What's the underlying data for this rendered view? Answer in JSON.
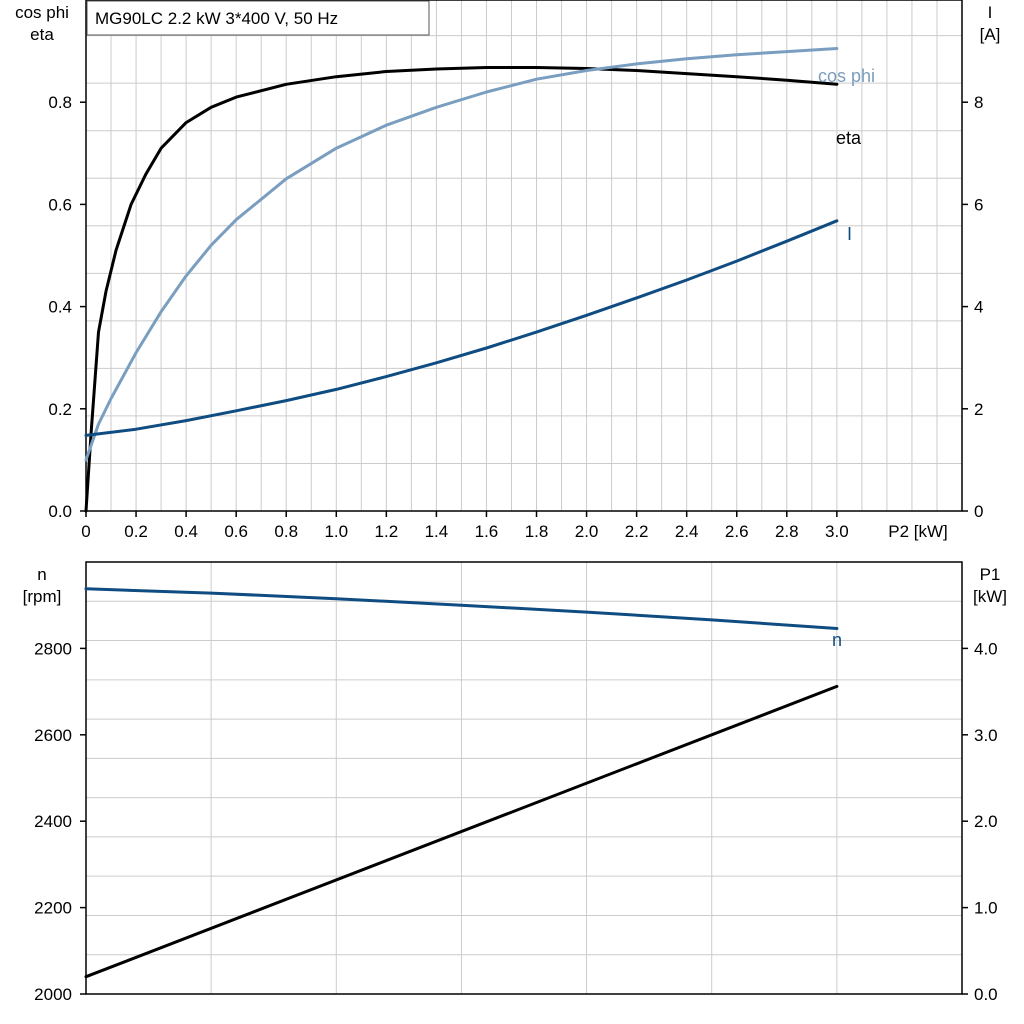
{
  "chart_data": [
    {
      "type": "line",
      "title": "MG90LC   2.2 kW   3*400 V, 50 Hz",
      "xlabel": "P2 [kW]",
      "xlim": [
        0,
        3.5
      ],
      "x_ticks": [
        "0",
        "0.2",
        "0.4",
        "0.6",
        "0.8",
        "1.0",
        "1.2",
        "1.4",
        "1.6",
        "1.8",
        "2.0",
        "2.2",
        "2.4",
        "2.6",
        "2.8",
        "3.0"
      ],
      "y_left_label": [
        "cos phi",
        "eta"
      ],
      "y_left_lim": [
        0,
        1.0
      ],
      "y_left_ticks": [
        "0.0",
        "0.2",
        "0.4",
        "0.6",
        "0.8"
      ],
      "y_right_label": [
        "I",
        "[A]"
      ],
      "y_right_lim": [
        0,
        10
      ],
      "y_right_ticks": [
        "0",
        "2",
        "4",
        "6",
        "8"
      ],
      "grid": true,
      "series": [
        {
          "name": "eta",
          "axis": "left",
          "color": "#000000",
          "x": [
            0,
            0.02,
            0.05,
            0.08,
            0.12,
            0.18,
            0.24,
            0.3,
            0.4,
            0.5,
            0.6,
            0.8,
            1.0,
            1.2,
            1.4,
            1.6,
            1.8,
            2.0,
            2.2,
            2.4,
            2.6,
            2.8,
            3.0
          ],
          "y": [
            0.0,
            0.15,
            0.35,
            0.43,
            0.51,
            0.6,
            0.66,
            0.71,
            0.76,
            0.79,
            0.81,
            0.835,
            0.85,
            0.86,
            0.865,
            0.868,
            0.868,
            0.866,
            0.862,
            0.856,
            0.85,
            0.843,
            0.835
          ]
        },
        {
          "name": "cos phi",
          "axis": "left",
          "color": "#7a9ec0",
          "x": [
            0,
            0.05,
            0.1,
            0.2,
            0.3,
            0.4,
            0.5,
            0.6,
            0.8,
            1.0,
            1.2,
            1.4,
            1.6,
            1.8,
            2.0,
            2.2,
            2.4,
            2.6,
            2.8,
            3.0
          ],
          "y": [
            0.1,
            0.17,
            0.22,
            0.31,
            0.39,
            0.46,
            0.52,
            0.57,
            0.65,
            0.71,
            0.755,
            0.79,
            0.82,
            0.845,
            0.862,
            0.875,
            0.885,
            0.893,
            0.899,
            0.905
          ]
        },
        {
          "name": "I",
          "axis": "right",
          "color": "#0f4c81",
          "x": [
            0,
            0.2,
            0.4,
            0.6,
            0.8,
            1.0,
            1.2,
            1.4,
            1.6,
            1.8,
            2.0,
            2.2,
            2.4,
            2.6,
            2.8,
            3.0
          ],
          "y": [
            1.48,
            1.6,
            1.77,
            1.96,
            2.16,
            2.38,
            2.63,
            2.9,
            3.19,
            3.5,
            3.83,
            4.17,
            4.52,
            4.89,
            5.28,
            5.68
          ]
        }
      ]
    },
    {
      "type": "line",
      "xlim": [
        0,
        3.5
      ],
      "y_left_label": [
        "n",
        "[rpm]"
      ],
      "y_left_lim": [
        2000,
        3000
      ],
      "y_left_ticks": [
        "2000",
        "2200",
        "2400",
        "2600",
        "2800"
      ],
      "y_right_label": [
        "P1",
        "[kW]"
      ],
      "y_right_lim": [
        0,
        5.0
      ],
      "y_right_ticks": [
        "0.0",
        "1.0",
        "2.0",
        "3.0",
        "4.0"
      ],
      "grid": true,
      "series": [
        {
          "name": "n",
          "axis": "left",
          "color": "#0f4c81",
          "x": [
            0,
            0.5,
            1.0,
            1.5,
            2.0,
            2.5,
            3.0
          ],
          "y": [
            2938,
            2928,
            2915,
            2900,
            2884,
            2866,
            2846
          ]
        },
        {
          "axis": "right",
          "color": "#000000",
          "x": [
            0,
            3.0
          ],
          "y": [
            0.2,
            3.56
          ]
        }
      ]
    }
  ]
}
